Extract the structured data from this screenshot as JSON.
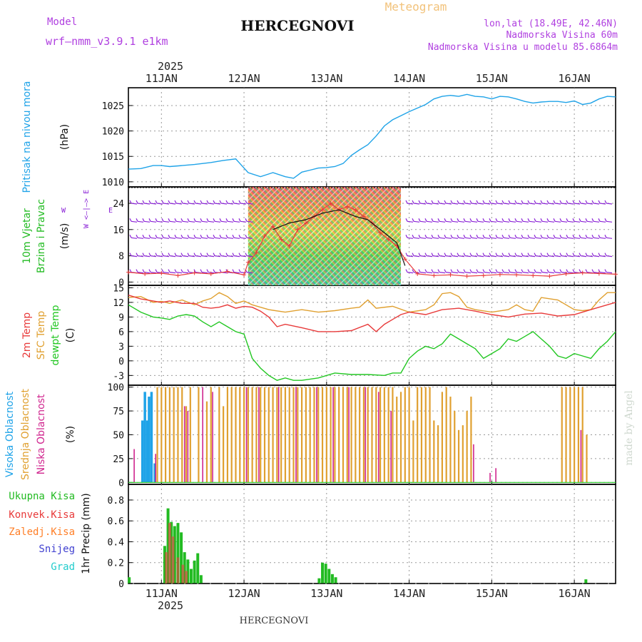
{
  "header": {
    "model_label": "Model",
    "model_name": "wrf–nmm_v3.9.1 e1km",
    "station": "HERCEGNOVI",
    "product": "Meteogram",
    "lonlat": "lon,lat (18.49E, 42.46N)",
    "elevation": "Nadmorska Visina 60m",
    "model_elevation": "Nadmorska Visina u modelu 85.6864m",
    "footer_station": "HERCEGNOVI",
    "credit": "made by Angel"
  },
  "colors": {
    "pressure": "#1fa3e8",
    "wind_label": "#22bb22",
    "wind_barb": "#8a22d6",
    "temp_2m": "#e83a3a",
    "temp_sfc": "#e0a030",
    "dewpoint": "#22c722",
    "cloud_high": "#1fa3e8",
    "cloud_mid": "#e0a030",
    "cloud_low": "#d0258e",
    "precip_total": "#22bb22",
    "precip_conv": "#e83a3a",
    "precip_frz": "#ff7f27",
    "precip_snow": "#4040d0",
    "precip_grad": "#22cccc",
    "title_meteo": "#f2c27a",
    "meta_text": "#b040e0"
  },
  "time_axis": {
    "year": "2025",
    "days": [
      "11JAN",
      "12JAN",
      "13JAN",
      "14JAN",
      "15JAN",
      "16JAN"
    ],
    "start_day": 10.6,
    "end_day": 16.5
  },
  "chart_data": [
    {
      "type": "line",
      "panel": "pressure",
      "ylabel_lines": [
        "Pritisak na nivou mora"
      ],
      "unit": "(hPa)",
      "ylim": [
        1009,
        1028.5
      ],
      "yticks": [
        1010,
        1015,
        1020,
        1025
      ],
      "series": [
        {
          "name": "Pritisak na nivou mora",
          "x": [
            10.6,
            10.75,
            10.9,
            11.0,
            11.1,
            11.25,
            11.4,
            11.5,
            11.6,
            11.75,
            11.9,
            11.95,
            12.05,
            12.2,
            12.35,
            12.5,
            12.6,
            12.7,
            12.8,
            12.9,
            13.0,
            13.1,
            13.2,
            13.3,
            13.4,
            13.5,
            13.6,
            13.7,
            13.8,
            13.9,
            14.0,
            14.1,
            14.2,
            14.3,
            14.4,
            14.5,
            14.6,
            14.7,
            14.8,
            14.9,
            15.0,
            15.1,
            15.2,
            15.3,
            15.4,
            15.5,
            15.6,
            15.7,
            15.8,
            15.9,
            16.0,
            16.1,
            16.2,
            16.3,
            16.4,
            16.5
          ],
          "y": [
            1012.5,
            1012.6,
            1013.2,
            1013.2,
            1013.0,
            1013.2,
            1013.4,
            1013.6,
            1013.8,
            1014.2,
            1014.5,
            1013.6,
            1011.8,
            1011.0,
            1011.8,
            1011.0,
            1010.7,
            1011.9,
            1012.3,
            1012.7,
            1012.8,
            1013.0,
            1013.6,
            1015.2,
            1016.3,
            1017.3,
            1019.0,
            1021.0,
            1022.2,
            1023.0,
            1023.8,
            1024.5,
            1025.2,
            1026.3,
            1026.8,
            1027.0,
            1026.8,
            1027.2,
            1026.8,
            1026.7,
            1026.3,
            1026.8,
            1026.7,
            1026.3,
            1025.8,
            1025.5,
            1025.7,
            1025.8,
            1025.8,
            1025.6,
            1025.9,
            1025.2,
            1025.5,
            1026.3,
            1026.8,
            1026.7
          ]
        }
      ]
    },
    {
      "type": "line",
      "panel": "wind",
      "ylabel_lines": [
        "10m Vjetar",
        "Brzina i Pravac"
      ],
      "unit": "(m/s)",
      "compass": "W <–|–> E",
      "compass_ns": [
        "N",
        "S"
      ],
      "ylim": [
        -1,
        29
      ],
      "yticks": [
        0,
        8,
        16,
        24
      ],
      "barb_rows": [
        3,
        8,
        13.5,
        18.5,
        24
      ],
      "calm_wind_until": 12.05,
      "gust_band": [
        12.05,
        13.9
      ],
      "series": [
        {
          "name": "Brzina",
          "x": [
            10.6,
            10.8,
            11.0,
            11.2,
            11.4,
            11.6,
            11.8,
            12.0,
            12.05,
            12.15,
            12.25,
            12.35,
            12.45,
            12.55,
            12.65,
            12.75,
            12.85,
            12.95,
            13.05,
            13.15,
            13.25,
            13.35,
            13.45,
            13.55,
            13.65,
            13.75,
            13.85,
            13.95,
            14.1,
            14.3,
            14.5,
            14.7,
            14.9,
            15.1,
            15.3,
            15.5,
            15.7,
            15.9,
            16.1,
            16.3,
            16.5
          ],
          "y": [
            3,
            2.5,
            2.7,
            2,
            2.8,
            2.5,
            3.2,
            2.2,
            6,
            9,
            14,
            17,
            13,
            11,
            16,
            18,
            20,
            22,
            24,
            22,
            23,
            22,
            20,
            18,
            15,
            13,
            11,
            7,
            2.5,
            2,
            2.2,
            1.8,
            2.0,
            2.3,
            2.2,
            2.0,
            1.8,
            2.5,
            2.8,
            2.6,
            2.4
          ]
        },
        {
          "name": "Udar",
          "x": [
            12.35,
            12.55,
            12.75,
            12.95,
            13.15,
            13.35,
            13.5,
            13.7,
            13.85,
            13.95
          ],
          "y": [
            16,
            18,
            19,
            21,
            22,
            20,
            19,
            15,
            12,
            5
          ]
        }
      ]
    },
    {
      "type": "line",
      "panel": "temperature",
      "ylabel_lines": [
        "2m Temp",
        "SFC Temp",
        "dewpt Temp"
      ],
      "unit": "(C)",
      "ylim": [
        -5,
        15.5
      ],
      "yticks": [
        -3,
        0,
        3,
        6,
        9,
        12,
        15
      ],
      "series": [
        {
          "name": "2m Temp",
          "x": [
            10.6,
            10.75,
            10.9,
            11.0,
            11.1,
            11.25,
            11.4,
            11.5,
            11.6,
            11.7,
            11.8,
            11.9,
            12.0,
            12.1,
            12.2,
            12.3,
            12.4,
            12.5,
            12.7,
            12.9,
            13.1,
            13.3,
            13.5,
            13.6,
            13.7,
            13.8,
            13.9,
            14.0,
            14.2,
            14.4,
            14.6,
            14.8,
            15.0,
            15.2,
            15.4,
            15.6,
            15.8,
            16.0,
            16.1,
            16.2,
            16.3,
            16.4,
            16.5
          ],
          "y": [
            13.5,
            12.7,
            12.3,
            12.0,
            12.3,
            11.8,
            11.8,
            11.0,
            10.8,
            11.0,
            11.5,
            10.8,
            11.2,
            11.0,
            10.2,
            9.0,
            7.0,
            7.5,
            6.8,
            6.0,
            6.0,
            6.2,
            7.5,
            6.0,
            7.5,
            8.5,
            9.5,
            10.0,
            9.5,
            10.5,
            10.8,
            10.2,
            9.5,
            9.0,
            9.6,
            9.8,
            9.2,
            9.5,
            10.0,
            10.5,
            11.0,
            11.5,
            12.0
          ]
        },
        {
          "name": "SFC Temp",
          "x": [
            10.6,
            10.75,
            10.9,
            11.0,
            11.1,
            11.25,
            11.4,
            11.5,
            11.6,
            11.7,
            11.8,
            11.9,
            12.0,
            12.1,
            12.2,
            12.3,
            12.5,
            12.7,
            12.9,
            13.1,
            13.3,
            13.4,
            13.5,
            13.6,
            13.8,
            14.0,
            14.2,
            14.3,
            14.4,
            14.5,
            14.6,
            14.7,
            14.8,
            15.0,
            15.2,
            15.3,
            15.4,
            15.5,
            15.6,
            15.8,
            16.0,
            16.1,
            16.2,
            16.3,
            16.4,
            16.5
          ],
          "y": [
            13.0,
            13.2,
            12.0,
            12.2,
            11.8,
            12.5,
            11.5,
            12.3,
            12.8,
            14.0,
            13.2,
            11.8,
            12.3,
            11.5,
            11.0,
            10.5,
            10.0,
            10.5,
            10.0,
            10.3,
            10.8,
            11.0,
            12.5,
            10.8,
            11.2,
            10.0,
            10.5,
            11.5,
            13.8,
            14.0,
            13.2,
            11.0,
            10.5,
            10.0,
            10.5,
            11.5,
            10.5,
            10.2,
            13.0,
            12.5,
            10.5,
            10.3,
            10.5,
            12.5,
            14.0,
            14.0
          ]
        },
        {
          "name": "dewpt Temp",
          "x": [
            10.6,
            10.75,
            10.9,
            11.0,
            11.1,
            11.2,
            11.3,
            11.4,
            11.5,
            11.6,
            11.7,
            11.8,
            11.9,
            12.0,
            12.1,
            12.2,
            12.3,
            12.4,
            12.5,
            12.6,
            12.7,
            12.9,
            13.1,
            13.3,
            13.5,
            13.7,
            13.8,
            13.9,
            14.0,
            14.1,
            14.2,
            14.3,
            14.4,
            14.5,
            14.6,
            14.7,
            14.8,
            14.9,
            15.0,
            15.1,
            15.2,
            15.3,
            15.4,
            15.5,
            15.6,
            15.7,
            15.8,
            15.9,
            16.0,
            16.1,
            16.2,
            16.3,
            16.4,
            16.5
          ],
          "y": [
            11.5,
            10.0,
            9.0,
            8.8,
            8.5,
            9.2,
            9.5,
            9.2,
            8.0,
            7.0,
            8.0,
            7.0,
            6.0,
            5.5,
            0.5,
            -1.5,
            -3.0,
            -4.0,
            -3.5,
            -4.0,
            -4.0,
            -3.5,
            -2.5,
            -2.8,
            -2.8,
            -3.0,
            -2.5,
            -2.5,
            0.5,
            2.0,
            3.0,
            2.5,
            3.5,
            5.5,
            4.5,
            3.5,
            2.5,
            0.5,
            1.5,
            2.5,
            4.5,
            4.0,
            5.0,
            6.0,
            4.5,
            3.0,
            1.0,
            0.5,
            1.5,
            1.0,
            0.5,
            2.5,
            4.0,
            6.0
          ]
        }
      ]
    },
    {
      "type": "bar",
      "panel": "cloud",
      "ylabel_lines": [
        "Visoka Oblacnost",
        "Srednja Oblacnost",
        "Niska Oblacnost"
      ],
      "unit": "(%)",
      "ylim": [
        -2,
        102
      ],
      "yticks": [
        0,
        25,
        50,
        75,
        100
      ],
      "series": [
        {
          "name": "Visoka Oblacnost",
          "x": [
            10.77,
            10.8,
            10.83,
            10.85,
            10.88,
            10.92
          ],
          "values": [
            65,
            95,
            65,
            90,
            95,
            20
          ]
        },
        {
          "name": "Srednja Oblacnost",
          "x": [
            10.95,
            11.0,
            11.05,
            11.1,
            11.15,
            11.2,
            11.25,
            11.3,
            11.35,
            11.45,
            11.55,
            11.6,
            11.7,
            11.75,
            11.8,
            11.85,
            11.9,
            11.95,
            12.0,
            12.05,
            12.1,
            12.15,
            12.2,
            12.25,
            12.3,
            12.35,
            12.4,
            12.45,
            12.5,
            12.55,
            12.6,
            12.65,
            12.7,
            12.75,
            12.8,
            12.85,
            12.9,
            12.95,
            13.0,
            13.05,
            13.1,
            13.15,
            13.2,
            13.25,
            13.3,
            13.35,
            13.4,
            13.45,
            13.5,
            13.55,
            13.6,
            13.65,
            13.7,
            13.75,
            13.8,
            13.85,
            13.9,
            13.95,
            14.0,
            14.05,
            14.1,
            14.15,
            14.2,
            14.25,
            14.3,
            14.35,
            14.4,
            14.45,
            14.5,
            14.55,
            14.6,
            14.65,
            14.7,
            14.75,
            15.85,
            15.9,
            15.95,
            16.0,
            16.05,
            16.1,
            16.15
          ],
          "values": [
            100,
            100,
            100,
            100,
            100,
            100,
            100,
            80,
            100,
            100,
            85,
            100,
            100,
            80,
            100,
            100,
            100,
            100,
            100,
            100,
            100,
            100,
            100,
            100,
            100,
            100,
            100,
            100,
            100,
            100,
            100,
            100,
            100,
            100,
            100,
            100,
            100,
            100,
            100,
            100,
            100,
            100,
            100,
            100,
            100,
            100,
            100,
            100,
            100,
            100,
            100,
            100,
            100,
            100,
            100,
            90,
            95,
            100,
            100,
            65,
            100,
            100,
            100,
            100,
            65,
            60,
            95,
            100,
            90,
            75,
            55,
            60,
            75,
            90,
            100,
            100,
            100,
            100,
            100,
            100,
            50
          ]
        },
        {
          "name": "Niska Oblacnost",
          "x": [
            10.67,
            10.93,
            11.28,
            11.32,
            11.5,
            11.62,
            12.03,
            12.18,
            12.42,
            12.63,
            12.88,
            13.08,
            13.27,
            13.47,
            13.63,
            13.78,
            14.78,
            14.98,
            15.05,
            16.08
          ],
          "values": [
            35,
            30,
            80,
            75,
            100,
            95,
            100,
            100,
            100,
            100,
            100,
            100,
            100,
            100,
            95,
            75,
            40,
            10,
            15,
            55
          ]
        }
      ]
    },
    {
      "type": "bar",
      "panel": "precip",
      "legend": [
        "Ukupna Kisa",
        "Konvek.Kisa",
        "Zaledj.Kisa",
        "Snijeg",
        "Grad"
      ],
      "ylabel_lines": [
        "1hr Precip (mm)"
      ],
      "ylim": [
        0,
        0.95
      ],
      "yticks": [
        0,
        0.2,
        0.4,
        0.6,
        0.8
      ],
      "series": [
        {
          "name": "Ukupna Kisa",
          "x": [
            10.61,
            11.04,
            11.08,
            11.12,
            11.16,
            11.2,
            11.24,
            11.28,
            11.32,
            11.36,
            11.4,
            11.44,
            11.48,
            12.91,
            12.95,
            12.99,
            13.03,
            13.07,
            13.11,
            16.14
          ],
          "values": [
            0.06,
            0.36,
            0.72,
            0.59,
            0.55,
            0.58,
            0.49,
            0.3,
            0.23,
            0.14,
            0.22,
            0.29,
            0.08,
            0.05,
            0.2,
            0.19,
            0.14,
            0.09,
            0.06,
            0.04
          ]
        },
        {
          "name": "Konvek.Kisa",
          "x": [
            11.06,
            11.1,
            11.14,
            11.2,
            11.26,
            11.3
          ],
          "values": [
            0.3,
            0.58,
            0.45,
            0.25,
            0.18,
            0.12
          ]
        }
      ]
    }
  ]
}
